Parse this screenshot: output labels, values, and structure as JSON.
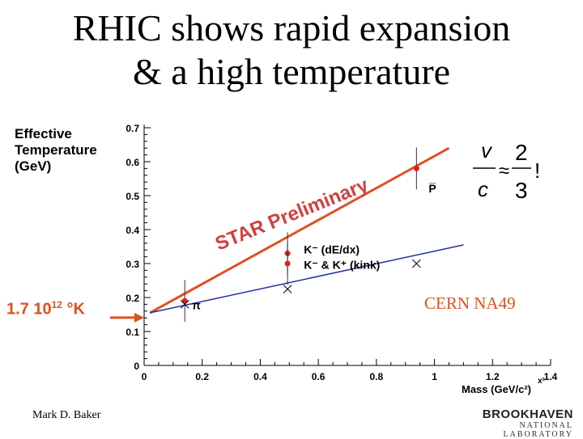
{
  "slide": {
    "title_line1": "RHIC shows rapid expansion",
    "title_line2": "& a high temperature",
    "ylabel_line1": "Effective",
    "ylabel_line2": "Temperature",
    "ylabel_line3": "(GeV)",
    "temperature_label": "1.7 10",
    "temperature_exp": "12",
    "temperature_unit": " °K",
    "cern_label": "CERN NA49",
    "author": "Mark D. Baker",
    "logo_line1": "BROOKHAVEN",
    "logo_line2": "NATIONAL LABORATORY",
    "formula_v": "v",
    "formula_c": "c",
    "formula_approx": "≈",
    "formula_2": "2",
    "formula_3": "3",
    "formula_bang": "!"
  },
  "colors": {
    "star": "#e05020",
    "preliminary": "#d04040",
    "cern_line": "#2030a0",
    "data_point": "#e02020"
  },
  "chart_data": {
    "type": "scatter",
    "xlabel": "Mass (GeV/c²)",
    "xlim": [
      0,
      1.4
    ],
    "ylim": [
      0,
      0.7
    ],
    "x_ticks": [
      "0",
      "0.2",
      "0.4",
      "0.6",
      "0.8",
      "1",
      "1.2",
      "1.4"
    ],
    "y_ticks": [
      "0",
      "0.1",
      "0.2",
      "0.3",
      "0.4",
      "0.5",
      "0.6",
      "0.7"
    ],
    "preliminary_text": "STAR Preliminary",
    "series": [
      {
        "name": "STAR",
        "points": [
          {
            "x": 0.14,
            "y": 0.19
          },
          {
            "x": 0.494,
            "y": 0.33
          },
          {
            "x": 0.494,
            "y": 0.3
          },
          {
            "x": 0.938,
            "y": 0.58
          }
        ]
      },
      {
        "name": "CERN NA49",
        "points": [
          {
            "x": 0.14,
            "y": 0.18
          },
          {
            "x": 0.494,
            "y": 0.225
          },
          {
            "x": 0.938,
            "y": 0.3
          }
        ]
      }
    ],
    "fit_lines": [
      {
        "name": "STAR",
        "x0": 0.02,
        "y0": 0.155,
        "x1": 1.05,
        "y1": 0.64
      },
      {
        "name": "CERN NA49",
        "x0": 0.02,
        "y0": 0.155,
        "x1": 1.1,
        "y1": 0.355
      }
    ],
    "point_labels": [
      {
        "text": "π",
        "x": 0.165,
        "y": 0.165
      },
      {
        "text": "K⁻  (dE/dx)",
        "x": 0.55,
        "y": 0.33
      },
      {
        "text": "K⁻ & K⁺ (kink)",
        "x": 0.55,
        "y": 0.285
      },
      {
        "text": "P̅",
        "x": 0.98,
        "y": 0.51
      }
    ],
    "annotations": [
      "x²"
    ]
  }
}
